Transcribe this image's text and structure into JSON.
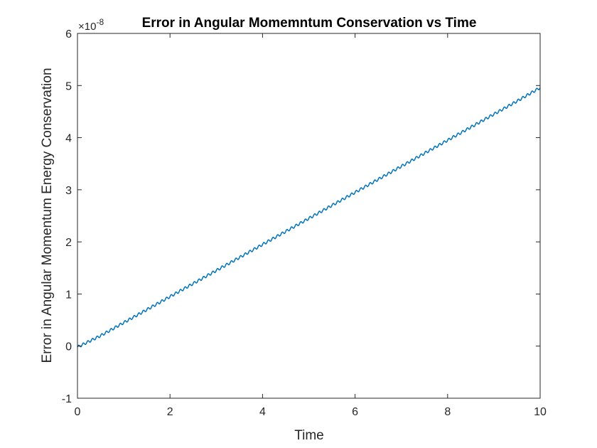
{
  "chart_data": {
    "type": "line",
    "title": "Error in Angular Momemntum Conservation vs Time",
    "xlabel": "Time",
    "ylabel": "Error in Angular Momentum Energy Conservation",
    "y_exponent_label": {
      "base": "×10",
      "power": "-8"
    },
    "xlim": [
      0,
      10
    ],
    "ylim": [
      -1,
      6
    ],
    "y_scale_factor": 1e-08,
    "xticks": [
      0,
      2,
      4,
      6,
      8,
      10
    ],
    "yticks": [
      -1,
      0,
      1,
      2,
      3,
      4,
      5,
      6
    ],
    "grid": false,
    "series": [
      {
        "color": "#0072BD",
        "x": [
          0,
          0.5,
          1,
          1.5,
          2,
          2.5,
          3,
          3.5,
          4,
          4.5,
          5,
          5.5,
          6,
          6.5,
          7,
          7.5,
          8,
          8.5,
          9,
          9.5,
          10
        ],
        "values": [
          -0.02,
          0.2,
          0.45,
          0.7,
          0.95,
          1.2,
          1.45,
          1.7,
          1.95,
          2.2,
          2.45,
          2.7,
          2.95,
          3.2,
          3.45,
          3.7,
          3.95,
          4.2,
          4.45,
          4.7,
          4.96
        ],
        "oscillation_amplitude": 0.025,
        "oscillation_period": 0.1
      }
    ]
  }
}
